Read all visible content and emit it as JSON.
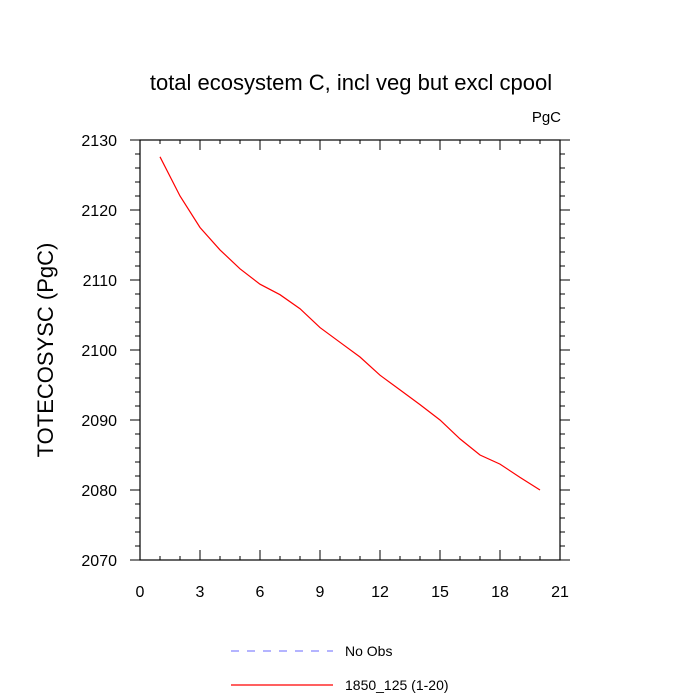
{
  "chart_data": {
    "type": "line",
    "title": "total ecosystem C, incl veg but excl cpool",
    "units": "PgC",
    "ylabel": "TOTECOSYSC  (PgC)",
    "xlabel": "",
    "xlim": [
      0,
      21
    ],
    "ylim": [
      2070,
      2130
    ],
    "x_ticks": [
      0,
      3,
      6,
      9,
      12,
      15,
      18,
      21
    ],
    "y_ticks": [
      2070,
      2080,
      2090,
      2100,
      2110,
      2120,
      2130
    ],
    "grid": false,
    "legend_position": "bottom",
    "series": [
      {
        "name": "No Obs",
        "color": "#8888ff",
        "style": "dashed",
        "x": [],
        "y": []
      },
      {
        "name": "1850_125 (1-20)",
        "color": "#ff0000",
        "style": "solid",
        "x": [
          1,
          2,
          3,
          4,
          5,
          6,
          7,
          8,
          9,
          10,
          11,
          12,
          13,
          14,
          15,
          16,
          17,
          18,
          19,
          20
        ],
        "y": [
          2127.6,
          2122.0,
          2117.5,
          2114.3,
          2111.6,
          2109.4,
          2107.9,
          2105.9,
          2103.2,
          2101.1,
          2099.0,
          2096.4,
          2094.3,
          2092.2,
          2090.0,
          2087.3,
          2085.0,
          2083.7,
          2081.8,
          2080.0
        ]
      }
    ]
  }
}
